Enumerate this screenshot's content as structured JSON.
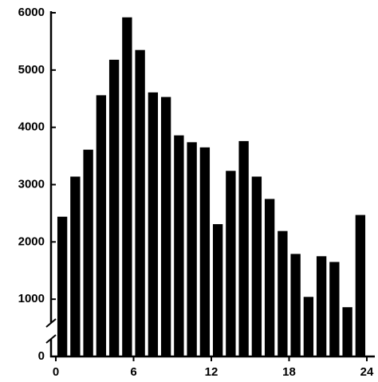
{
  "chart_data": {
    "type": "histogram",
    "bins": [
      0,
      1,
      2,
      3,
      4,
      5,
      6,
      7,
      8,
      9,
      10,
      11,
      12,
      13,
      14,
      15,
      16,
      17,
      18,
      19,
      20,
      21,
      22,
      23,
      24
    ],
    "values": [
      2440,
      3140,
      3610,
      4560,
      5180,
      5920,
      5350,
      4610,
      4530,
      3860,
      3740,
      3650,
      2310,
      3240,
      3760,
      3140,
      2750,
      2190,
      1790,
      1040,
      1750,
      1650,
      860,
      2470
    ],
    "color": "#000000",
    "xlim": [
      0,
      24
    ],
    "xticks": [
      0,
      6,
      12,
      18,
      24
    ],
    "ylim": [
      0,
      6000
    ],
    "yticks": [
      0,
      1000,
      2000,
      3000,
      4000,
      5000,
      6000
    ],
    "grid": false
  }
}
